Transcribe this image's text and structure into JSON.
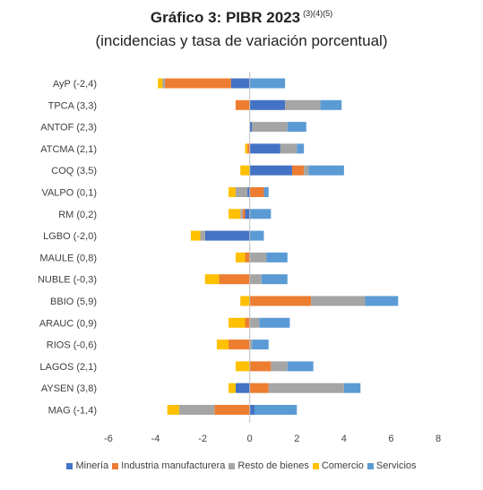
{
  "title": "Gráfico 3: PIBR 2023",
  "title_notes": "(3)(4)(5)",
  "subtitle": "(incidencias y tasa de variación porcentual)",
  "chart_data": {
    "type": "bar",
    "orientation": "horizontal",
    "stacked": true,
    "categories": [
      "AyP (-2,4)",
      "TPCA (3,3)",
      "ANTOF (2,3)",
      "ATCMA (2,1)",
      "COQ (3,5)",
      "VALPO (0,1)",
      "RM (0,2)",
      "LGBO (-2,0)",
      "MAULE (0,8)",
      "NUBLE (-0,3)",
      "BBIO (5,9)",
      "ARAUC (0,9)",
      "RIOS (-0,6)",
      "LAGOS (2,1)",
      "AYSEN (3,8)",
      "MAG (-1,4)"
    ],
    "series": [
      {
        "name": "Minería",
        "color": "#4472C4",
        "values": [
          -0.8,
          1.5,
          0.1,
          1.3,
          1.8,
          -0.1,
          -0.2,
          -1.9,
          0.0,
          0.0,
          0.0,
          0.0,
          0.0,
          0.0,
          -0.6,
          0.2
        ]
      },
      {
        "name": "Industria manufacturera",
        "color": "#ED7D31",
        "values": [
          -2.8,
          -0.6,
          0.0,
          -0.1,
          0.5,
          0.6,
          -0.1,
          0.0,
          -0.2,
          -1.3,
          2.6,
          -0.2,
          -0.9,
          0.9,
          0.8,
          -1.5
        ]
      },
      {
        "name": "Resto de bienes",
        "color": "#A5A5A5",
        "values": [
          -0.1,
          1.5,
          1.5,
          0.7,
          0.2,
          -0.5,
          -0.1,
          -0.2,
          0.7,
          0.5,
          2.3,
          0.4,
          0.1,
          0.7,
          3.2,
          -1.5
        ]
      },
      {
        "name": "Comercio",
        "color": "#FFC000",
        "values": [
          -0.2,
          0.0,
          0.0,
          -0.1,
          -0.4,
          -0.3,
          -0.5,
          -0.4,
          -0.4,
          -0.6,
          -0.4,
          -0.7,
          -0.5,
          -0.6,
          -0.3,
          -0.5
        ]
      },
      {
        "name": "Servicios",
        "color": "#5B9BD5",
        "values": [
          1.5,
          0.9,
          0.8,
          0.3,
          1.5,
          0.2,
          0.9,
          0.6,
          0.9,
          1.1,
          1.4,
          1.3,
          0.7,
          1.1,
          0.7,
          1.8
        ]
      }
    ],
    "xlim": [
      -6,
      8
    ],
    "xticks": [
      -6,
      -4,
      -2,
      0,
      2,
      4,
      6,
      8
    ],
    "grid": false,
    "legend_position": "bottom"
  }
}
